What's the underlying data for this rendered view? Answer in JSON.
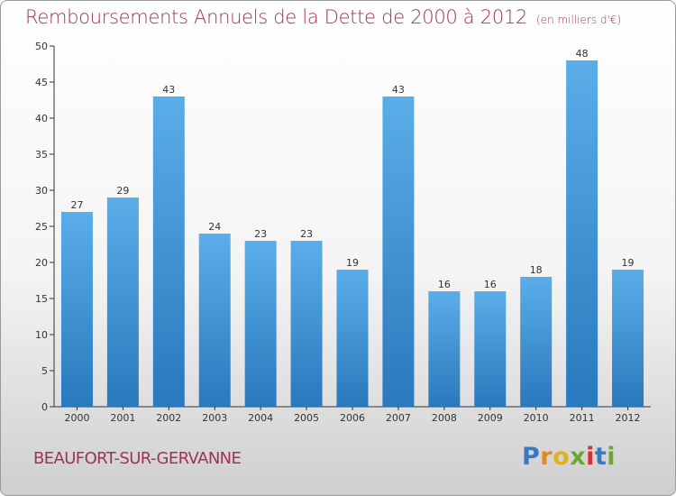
{
  "header": {
    "title": "Remboursements Annuels de la Dette de 2000 à 2012",
    "subtitle": "(en milliers d'€)"
  },
  "footer": {
    "commune": "BEAUFORT-SUR-GERVANNE",
    "logo": {
      "text": "Proxiti",
      "letters": [
        "P",
        "r",
        "o",
        "x",
        "i",
        "t",
        "i"
      ],
      "letter_colors": [
        "#3a78c2",
        "#e38a1f",
        "#e0b21b",
        "#6aa82e",
        "#d62f2f",
        "#3a78c2",
        "#6aa82e"
      ]
    }
  },
  "chart_data": {
    "type": "bar",
    "title": "Remboursements Annuels de la Dette de 2000 à 2012",
    "subtitle": "(en milliers d'€)",
    "categories": [
      "2000",
      "2001",
      "2002",
      "2003",
      "2004",
      "2005",
      "2006",
      "2007",
      "2008",
      "2009",
      "2010",
      "2011",
      "2012"
    ],
    "values": [
      27,
      29,
      43,
      24,
      23,
      23,
      19,
      43,
      16,
      16,
      18,
      48,
      19
    ],
    "xlabel": "",
    "ylabel": "",
    "ylim": [
      0,
      50
    ],
    "yticks": [
      0,
      5,
      10,
      15,
      20,
      25,
      30,
      35,
      40,
      45,
      50
    ],
    "grid": false,
    "legend": "none",
    "colors": {
      "bar_top": "#5aaee8",
      "bar_bottom": "#2a78bd",
      "axis": "#333333"
    }
  }
}
